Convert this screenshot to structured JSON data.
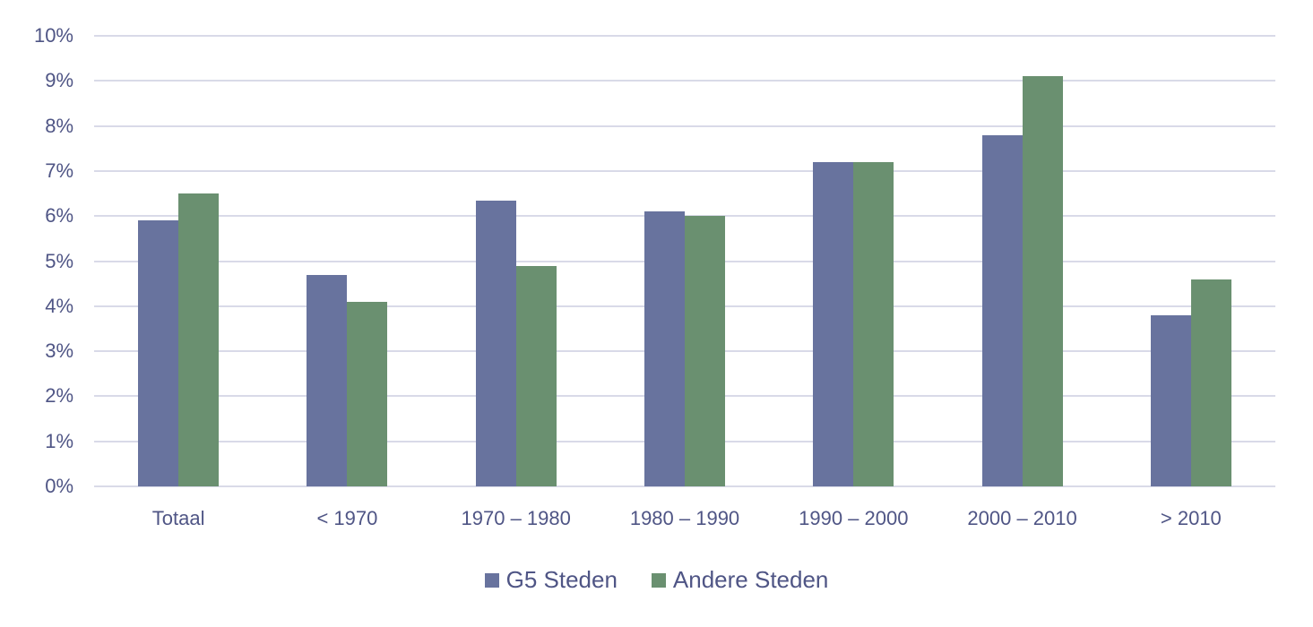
{
  "chart_data": {
    "type": "bar",
    "title": "",
    "xlabel": "",
    "ylabel": "",
    "ylim": [
      0,
      10
    ],
    "yticks": [
      "0%",
      "1%",
      "2%",
      "3%",
      "4%",
      "5%",
      "6%",
      "7%",
      "8%",
      "9%",
      "10%"
    ],
    "grid": true,
    "legend_position": "bottom",
    "categories": [
      "Totaal",
      "< 1970",
      "1970 – 1980",
      "1980 – 1990",
      "1990 – 2000",
      "2000 – 2010",
      "> 2010"
    ],
    "series": [
      {
        "name": "G5 Steden",
        "color": "#68739e",
        "values": [
          5.9,
          4.7,
          6.35,
          6.1,
          7.2,
          7.8,
          3.8
        ]
      },
      {
        "name": "Andere Steden",
        "color": "#6a9070",
        "values": [
          6.5,
          4.1,
          4.9,
          6.0,
          7.2,
          9.1,
          4.6
        ]
      }
    ]
  }
}
